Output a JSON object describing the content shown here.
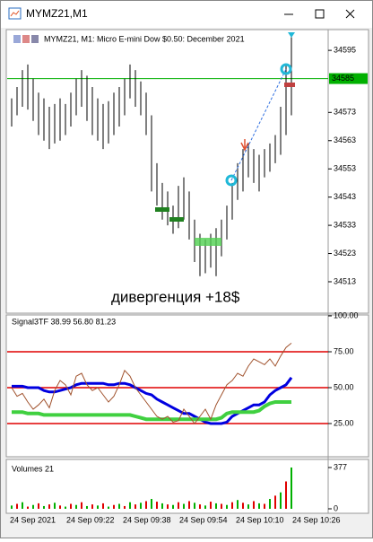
{
  "window": {
    "title": "MYMZ21,M1"
  },
  "chart_data": [
    {
      "type": "bar",
      "title": "MYMZ21, M1:  Micro E-mini Dow $0.50: December 2021",
      "annotation": "дивергенция +18$",
      "color": "#000000",
      "hline": 34585,
      "hline_color": "#00b000",
      "ylim": [
        34502.5,
        34601.4
      ],
      "yticks": [
        34595,
        34573,
        34563,
        34553,
        34543,
        34533,
        34523,
        34513
      ],
      "series": [
        {
          "name": "high",
          "values": [
            34578,
            34582,
            34588,
            34590,
            34585,
            34580,
            34578,
            34575,
            34576,
            34578,
            34576,
            34580,
            34585,
            34588,
            34586,
            34582,
            34578,
            34576,
            34577,
            34580,
            34582,
            34585,
            34590,
            34588,
            34584,
            34580,
            34572,
            34555,
            34548,
            34545,
            34540,
            34547,
            34550,
            34545,
            34535,
            34530,
            34528,
            34530,
            34532,
            34535,
            34540,
            34548,
            34555,
            34560,
            34562,
            34560,
            34558,
            34560,
            34562,
            34565,
            34575,
            34590,
            34600
          ]
        },
        {
          "name": "low",
          "values": [
            34568,
            34572,
            34575,
            34574,
            34570,
            34565,
            34563,
            34560,
            34562,
            34563,
            34565,
            34568,
            34572,
            34575,
            34570,
            34565,
            34563,
            34560,
            34562,
            34565,
            34568,
            34572,
            34578,
            34575,
            34572,
            34565,
            34545,
            34540,
            34535,
            34533,
            34530,
            34532,
            34535,
            34528,
            34520,
            34515,
            34516,
            34518,
            34515,
            34522,
            34528,
            34535,
            34542,
            34545,
            34550,
            34548,
            34545,
            34550,
            34552,
            34555,
            34558,
            34565,
            34572
          ]
        }
      ]
    },
    {
      "type": "line",
      "title": "Signal3TF 38.99 56.80 81.23",
      "ylim": [
        2.5,
        100
      ],
      "yticks": [
        {
          "value": 100,
          "label": "100.00"
        },
        {
          "value": 75,
          "label": "75.00"
        },
        {
          "value": 50,
          "label": "50.00"
        },
        {
          "value": 25,
          "label": "25.00"
        }
      ],
      "levels": [
        75,
        50,
        25
      ],
      "level_color": "#e00000",
      "series": [
        {
          "name": "blue",
          "color": "#0000e0",
          "width": 3,
          "values": [
            51,
            51,
            51,
            50,
            50,
            50,
            48,
            47,
            47,
            48,
            49,
            50,
            52,
            53,
            53,
            53,
            53,
            53,
            52,
            52,
            53,
            53,
            52,
            50,
            48,
            46,
            45,
            42,
            40,
            38,
            36,
            34,
            32,
            32,
            30,
            28,
            26,
            25,
            25,
            25,
            26,
            30,
            32,
            34,
            36,
            38,
            38,
            40,
            45,
            48,
            50,
            52,
            57
          ]
        },
        {
          "name": "green",
          "color": "#40d040",
          "width": 4,
          "values": [
            33,
            33,
            33,
            32,
            32,
            32,
            31,
            31,
            31,
            31,
            31,
            31,
            31,
            31,
            31,
            31,
            31,
            31,
            31,
            31,
            31,
            31,
            31,
            30,
            29,
            28,
            28,
            28,
            28,
            28,
            28,
            28,
            28,
            28,
            28,
            28,
            28,
            28,
            28,
            29,
            32,
            33,
            33,
            33,
            33,
            33,
            34,
            37,
            39,
            40,
            40,
            40,
            40
          ]
        },
        {
          "name": "brown",
          "color": "#a0522d",
          "width": 1,
          "values": [
            50,
            44,
            46,
            40,
            35,
            38,
            42,
            36,
            48,
            55,
            52,
            45,
            58,
            60,
            52,
            48,
            50,
            45,
            40,
            44,
            52,
            62,
            58,
            50,
            45,
            40,
            35,
            30,
            28,
            30,
            26,
            27,
            35,
            30,
            25,
            30,
            35,
            28,
            38,
            45,
            52,
            55,
            60,
            58,
            65,
            70,
            68,
            66,
            70,
            65,
            72,
            78,
            81
          ]
        }
      ]
    },
    {
      "type": "bar",
      "title": "Volumes 21",
      "ylim": [
        0,
        377
      ],
      "yticks": [
        377,
        0
      ],
      "values": [
        30,
        45,
        60,
        20,
        35,
        50,
        25,
        40,
        55,
        30,
        20,
        45,
        35,
        60,
        25,
        40,
        30,
        50,
        20,
        35,
        45,
        25,
        60,
        40,
        55,
        70,
        90,
        65,
        50,
        40,
        35,
        60,
        45,
        70,
        55,
        40,
        30,
        65,
        50,
        45,
        35,
        60,
        80,
        55,
        40,
        70,
        50,
        45,
        90,
        120,
        150,
        250,
        377
      ],
      "colors": [
        "#00b000",
        "#e00000"
      ],
      "x_labels": [
        "24 Sep 2021",
        "24 Sep 09:22",
        "24 Sep 09:38",
        "24 Sep 09:54",
        "24 Sep 10:10",
        "24 Sep 10:26"
      ]
    }
  ]
}
